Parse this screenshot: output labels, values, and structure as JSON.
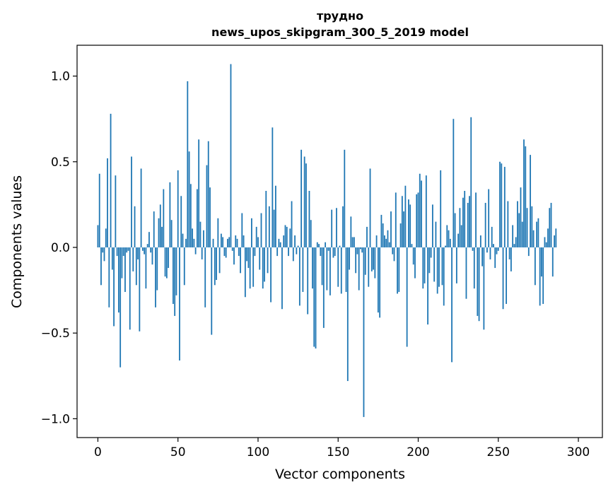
{
  "chart_data": {
    "type": "bar",
    "title": "трудно",
    "subtitle": "news_upos_skipgram_300_5_2019 model",
    "xlabel": "Vector components",
    "ylabel": "Components values",
    "xlim": [
      -13,
      315
    ],
    "ylim": [
      -1.11,
      1.18
    ],
    "xticks": [
      0,
      50,
      100,
      150,
      200,
      250,
      300
    ],
    "xtick_labels": [
      "0",
      "50",
      "100",
      "150",
      "200",
      "250",
      "300"
    ],
    "yticks": [
      -1.0,
      -0.5,
      0.0,
      0.5,
      1.0
    ],
    "ytick_labels": [
      "−1.0",
      "−0.5",
      "0.0",
      "0.5",
      "1.0"
    ],
    "grid": false,
    "bar_color": "#1f77b4",
    "values": [
      0.13,
      0.43,
      -0.22,
      -0.03,
      -0.08,
      0.11,
      0.52,
      -0.35,
      0.78,
      -0.13,
      -0.46,
      0.42,
      -0.05,
      -0.38,
      -0.7,
      -0.18,
      -0.05,
      -0.26,
      -0.03,
      -0.02,
      -0.48,
      0.53,
      -0.14,
      0.24,
      -0.22,
      -0.07,
      -0.49,
      0.46,
      -0.02,
      -0.04,
      -0.24,
      0.02,
      0.09,
      -0.03,
      -0.1,
      0.21,
      -0.35,
      -0.25,
      0.17,
      0.25,
      0.12,
      0.34,
      -0.17,
      -0.18,
      -0.12,
      0.38,
      0.16,
      -0.33,
      -0.4,
      -0.28,
      0.45,
      -0.66,
      0.3,
      0.08,
      -0.22,
      0.05,
      0.97,
      0.56,
      0.37,
      0.11,
      0.05,
      -0.04,
      0.34,
      0.63,
      0.15,
      -0.07,
      0.1,
      -0.35,
      0.48,
      0.62,
      0.35,
      -0.51,
      0.05,
      -0.22,
      -0.19,
      0.17,
      -0.15,
      0.08,
      0.06,
      -0.05,
      -0.06,
      0.05,
      0.06,
      1.07,
      -0.02,
      -0.1,
      0.07,
      0.05,
      -0.05,
      -0.15,
      0.2,
      0.07,
      -0.29,
      -0.08,
      -0.12,
      -0.24,
      0.17,
      -0.23,
      -0.05,
      0.12,
      0.06,
      -0.13,
      0.2,
      -0.24,
      -0.2,
      0.33,
      -0.15,
      0.24,
      -0.32,
      0.7,
      0.22,
      0.36,
      -0.05,
      0.05,
      0.03,
      -0.36,
      0.07,
      0.13,
      0.12,
      -0.05,
      0.11,
      0.27,
      -0.08,
      0.07,
      -0.04,
      0.01,
      -0.34,
      0.57,
      -0.26,
      0.53,
      0.49,
      -0.39,
      0.33,
      0.16,
      -0.24,
      -0.58,
      -0.59,
      0.03,
      0.02,
      -0.05,
      -0.22,
      -0.47,
      0.03,
      -0.25,
      -0.02,
      -0.28,
      0.22,
      -0.06,
      -0.05,
      0.23,
      -0.23,
      0.01,
      -0.27,
      0.24,
      0.57,
      -0.26,
      -0.78,
      -0.13,
      0.18,
      0.06,
      0.06,
      -0.15,
      -0.04,
      -0.25,
      -0.01,
      -0.03,
      -0.99,
      -0.16,
      0.12,
      -0.23,
      0.46,
      -0.14,
      -0.13,
      -0.18,
      0.07,
      -0.38,
      -0.41,
      0.19,
      0.14,
      0.07,
      0.05,
      0.1,
      0.03,
      0.21,
      -0.04,
      -0.08,
      0.32,
      -0.27,
      -0.26,
      0.14,
      0.3,
      0.21,
      0.36,
      -0.58,
      0.28,
      0.25,
      0.02,
      -0.1,
      -0.18,
      0.31,
      0.32,
      0.43,
      0.39,
      -0.24,
      -0.21,
      0.42,
      -0.45,
      -0.15,
      -0.06,
      0.25,
      -0.2,
      0.15,
      -0.27,
      -0.23,
      0.45,
      -0.22,
      -0.34,
      0.01,
      0.13,
      0.1,
      0.05,
      -0.67,
      0.75,
      0.2,
      -0.21,
      0.08,
      0.23,
      0.13,
      0.29,
      0.33,
      -0.3,
      0.26,
      0.3,
      0.76,
      -0.02,
      -0.24,
      0.32,
      -0.4,
      -0.43,
      0.07,
      -0.11,
      -0.48,
      0.26,
      -0.03,
      0.34,
      -0.07,
      0.12,
      0.02,
      -0.12,
      -0.04,
      -0.02,
      0.5,
      0.49,
      -0.36,
      0.47,
      -0.33,
      0.27,
      -0.07,
      -0.14,
      0.13,
      0.02,
      0.06,
      0.27,
      0.2,
      0.35,
      0.15,
      0.63,
      0.59,
      0.23,
      -0.05,
      0.54,
      0.24,
      0.1,
      -0.22,
      0.15,
      0.17,
      -0.34,
      -0.17,
      -0.33,
      0.06,
      0.03,
      0.11,
      0.23,
      0.26,
      -0.17,
      0.07,
      0.11
    ]
  }
}
